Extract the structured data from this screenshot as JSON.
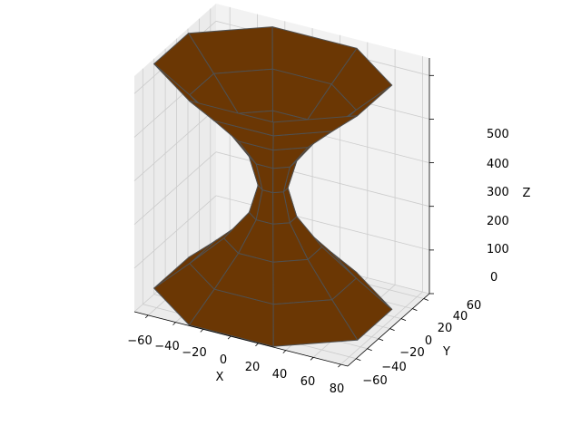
{
  "chart_data": {
    "type": "surface3d",
    "title": "",
    "xlabel": "X",
    "ylabel": "Y",
    "zlabel": "Z",
    "x_ticks": [
      "−60",
      "−40",
      "−20",
      "0",
      "20",
      "40",
      "60",
      "80"
    ],
    "y_ticks": [
      "−60",
      "−40",
      "−20",
      "0",
      "20",
      "40",
      "60"
    ],
    "z_ticks": [
      "0",
      "100",
      "200",
      "300",
      "400",
      "500"
    ],
    "xlim": [
      -70,
      85
    ],
    "ylim": [
      -75,
      70
    ],
    "zlim": [
      0,
      540
    ],
    "grid": true,
    "surface": {
      "description": "hyperboloid of one sheet",
      "z_levels": [
        0,
        64,
        129,
        193,
        257,
        321,
        386,
        450,
        514
      ],
      "radii": [
        80,
        56,
        33,
        16,
        10,
        16,
        33,
        56,
        80
      ],
      "angular_segments": 8,
      "face_color": "#6b3704",
      "edge_color": "#505050"
    },
    "colors": {
      "pane": "#f2f2f2",
      "pane_dark": "#ebebeb",
      "grid": "#cccccc"
    }
  }
}
